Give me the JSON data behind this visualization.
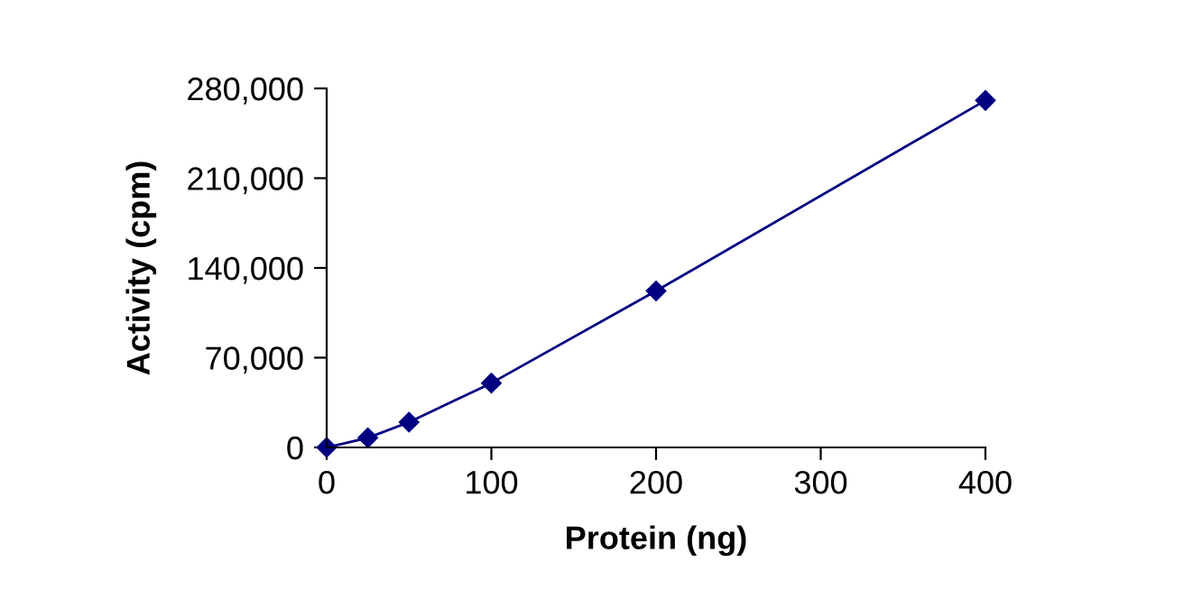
{
  "chart_data": {
    "type": "line",
    "xlabel": "Protein (ng)",
    "ylabel": "Activity (cpm)",
    "x": [
      0,
      25,
      50,
      100,
      200,
      400
    ],
    "series": [
      {
        "color": "#000080",
        "values": [
          0,
          7500,
          19700,
          50200,
          122000,
          270600
        ]
      }
    ],
    "xlim": [
      0,
      400
    ],
    "xticks": [
      0,
      100,
      200,
      300,
      400
    ],
    "ylim": [
      0,
      280000
    ],
    "yticks": [
      {
        "value": 0,
        "label": "0"
      },
      {
        "value": 70000,
        "label": "70,000"
      },
      {
        "value": 140000,
        "label": "140,000"
      },
      {
        "value": 210000,
        "label": "210,000"
      },
      {
        "value": 280000,
        "label": "280,000"
      }
    ],
    "marker": "diamond",
    "line_style": "solid",
    "grid": false,
    "legend": false
  }
}
